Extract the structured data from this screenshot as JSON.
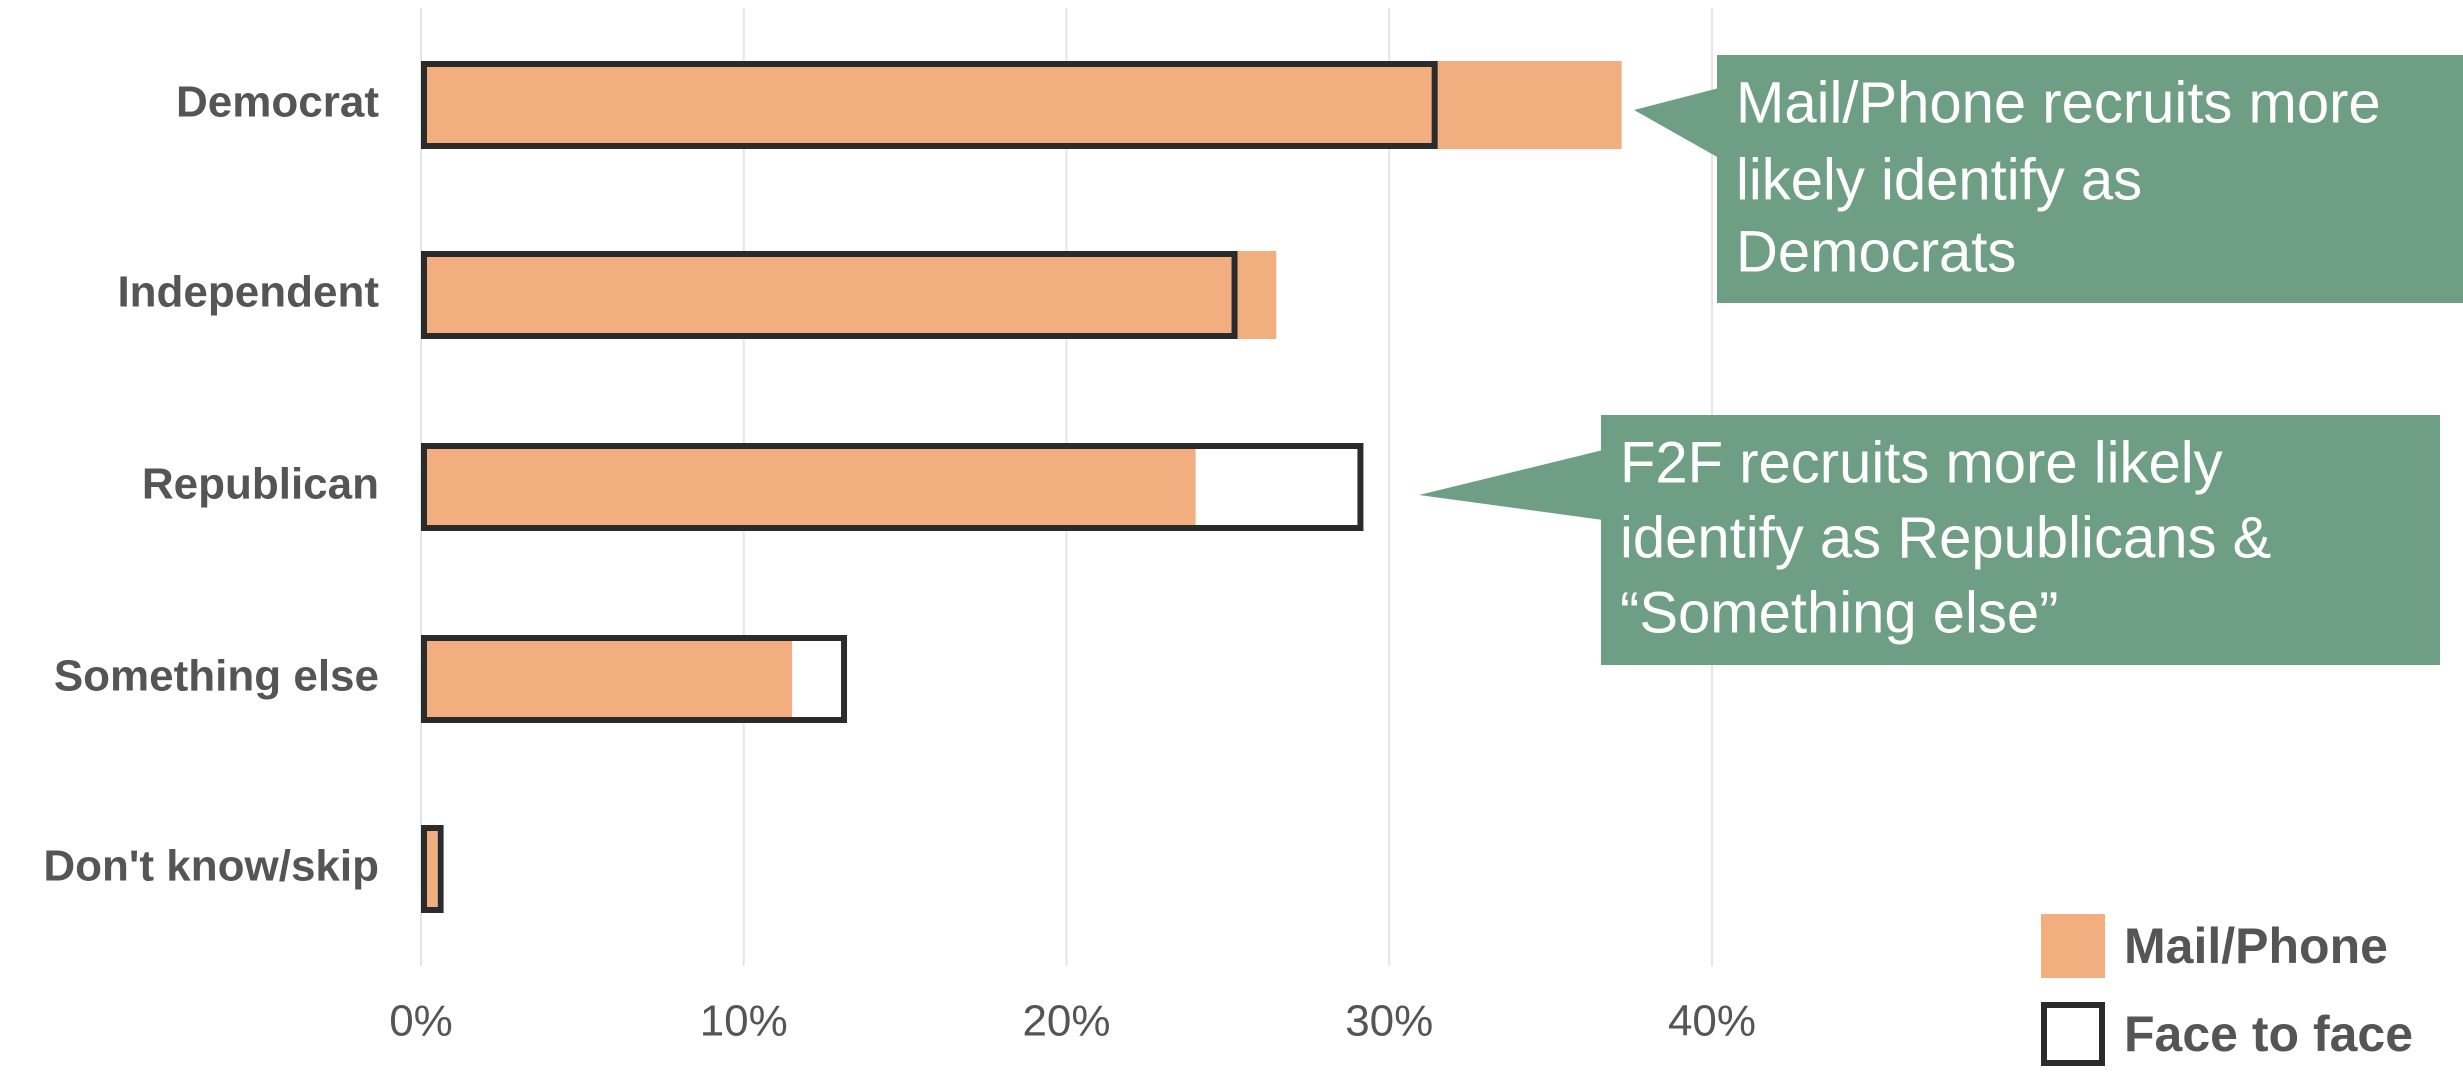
{
  "chart_data": {
    "type": "bar",
    "orientation": "horizontal",
    "categories": [
      "Democrat",
      "Independent",
      "Republican",
      "Something else",
      "Don't know/skip"
    ],
    "series": [
      {
        "name": "Mail/Phone",
        "color": "#f2ae7e",
        "style": "filled",
        "values": [
          37.2,
          26.5,
          24.0,
          11.5,
          0.5
        ]
      },
      {
        "name": "Face to face",
        "color": "#2b2b2b",
        "style": "outline",
        "values": [
          31.5,
          25.3,
          29.2,
          13.2,
          0.7
        ]
      }
    ],
    "xlim": [
      0,
      45
    ],
    "xticks": [
      {
        "value": 0,
        "label": "0%"
      },
      {
        "value": 10,
        "label": "10%"
      },
      {
        "value": 20,
        "label": "20%"
      },
      {
        "value": 30,
        "label": "30%"
      },
      {
        "value": 40,
        "label": "40%"
      }
    ],
    "grid": true,
    "legend": "bottom-right",
    "annotations": [
      {
        "lines": [
          "Mail/Phone recruits more",
          "likely identify as",
          "Democrats"
        ],
        "color": "#6e9e84"
      },
      {
        "lines": [
          "F2F recruits more likely",
          "identify as Republicans &",
          "“Something else”"
        ],
        "color": "#6e9e84"
      }
    ]
  }
}
